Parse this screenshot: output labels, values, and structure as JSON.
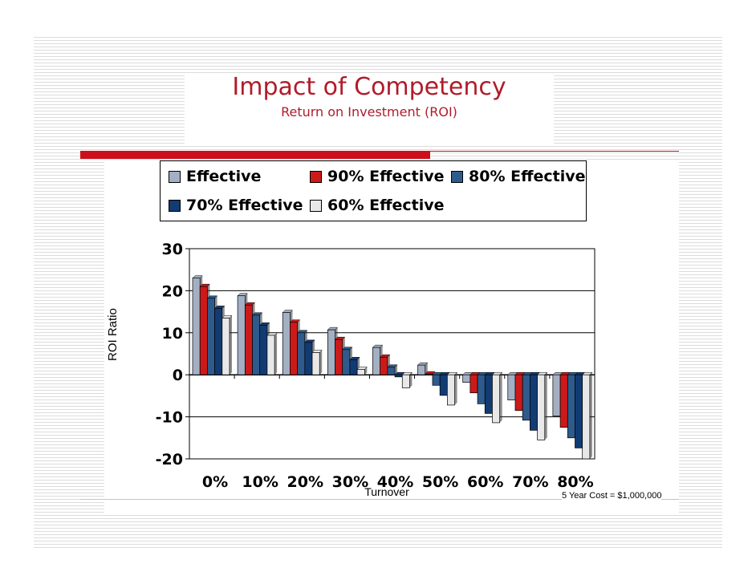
{
  "slide": {
    "title": "Impact of Competency",
    "subtitle": "Return on Investment (ROI)",
    "footnote": "5 Year Cost = $1,000,000"
  },
  "chart_data": {
    "type": "bar",
    "title": "Impact of Competency",
    "subtitle": "Return on Investment (ROI)",
    "xlabel": "Turnover",
    "ylabel": "ROI Ratio",
    "ylim": [
      -20,
      30
    ],
    "yticks": [
      "30",
      "20",
      "10",
      "0",
      "-10",
      "-20"
    ],
    "grid": true,
    "legend_position": "top",
    "categories": [
      "0%",
      "10%",
      "20%",
      "30%",
      "40%",
      "50%",
      "60%",
      "70%",
      "80%"
    ],
    "series": [
      {
        "name": "Effective",
        "color": "#a3b0c4",
        "values": [
          23,
          18.8,
          14.8,
          10.7,
          6.5,
          2.3,
          -1.8,
          -6,
          -9.8
        ]
      },
      {
        "name": "90% Effective",
        "color": "#cc1a1a",
        "values": [
          21,
          16.6,
          12.5,
          8.4,
          4.2,
          0.2,
          -4.3,
          -8.5,
          -12.5
        ]
      },
      {
        "name": "80% Effective",
        "color": "#2e5b8c",
        "values": [
          18.2,
          14.2,
          10,
          6,
          1.8,
          -2.5,
          -6.9,
          -10.8,
          -15
        ]
      },
      {
        "name": "70% Effective",
        "color": "#123b73",
        "values": [
          15.8,
          11.8,
          7.7,
          3.6,
          -0.5,
          -4.9,
          -9.2,
          -13.2,
          -17.4
        ]
      },
      {
        "name": "60% Effective",
        "color": "#e8e8e8",
        "values": [
          13.5,
          9.4,
          5.3,
          1.3,
          -3.1,
          -7.2,
          -11.4,
          -15.5,
          -20
        ]
      }
    ]
  }
}
